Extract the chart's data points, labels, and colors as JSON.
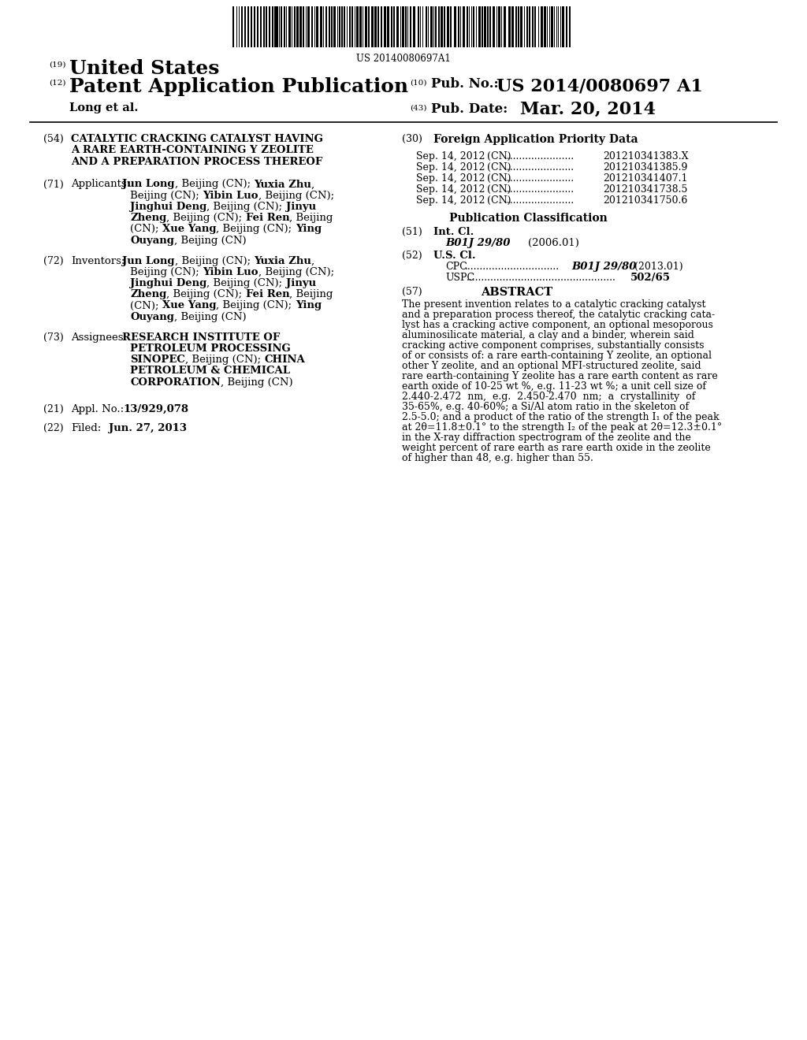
{
  "background_color": "#ffffff",
  "barcode_text": "US 20140080697A1",
  "header_19_text": "United States",
  "header_12_text": "Patent Application Publication",
  "header_long": "Long et al.",
  "header_10_label": "Pub. No.:",
  "header_10_value": "US 2014/0080697 A1",
  "header_43_label": "Pub. Date:",
  "header_43_value": "Mar. 20, 2014",
  "section_54_title_lines": [
    "CATALYTIC CRACKING CATALYST HAVING",
    "A RARE EARTH-CONTAINING Y ZEOLITE",
    "AND A PREPARATION PROCESS THEREOF"
  ],
  "section_71_lines": [
    [
      [
        "Jun Long",
        true
      ],
      [
        ", Beijing (CN); ",
        false
      ],
      [
        "Yuxia Zhu",
        true
      ],
      [
        ",",
        false
      ]
    ],
    [
      [
        "Beijing (CN); ",
        false
      ],
      [
        "Yibin Luo",
        true
      ],
      [
        ", Beijing (CN);",
        false
      ]
    ],
    [
      [
        "Jinghui Deng",
        true
      ],
      [
        ", Beijing (CN); ",
        false
      ],
      [
        "Jinyu",
        true
      ]
    ],
    [
      [
        "Zheng",
        true
      ],
      [
        ", Beijing (CN); ",
        false
      ],
      [
        "Fei Ren",
        true
      ],
      [
        ", Beijing",
        false
      ]
    ],
    [
      [
        "(CN); ",
        false
      ],
      [
        "Xue Yang",
        true
      ],
      [
        ", Beijing (CN); ",
        false
      ],
      [
        "Ying",
        true
      ]
    ],
    [
      [
        "Ouyang",
        true
      ],
      [
        ", Beijing (CN)",
        false
      ]
    ]
  ],
  "section_72_lines": [
    [
      [
        "Jun Long",
        true
      ],
      [
        ", Beijing (CN); ",
        false
      ],
      [
        "Yuxia Zhu",
        true
      ],
      [
        ",",
        false
      ]
    ],
    [
      [
        "Beijing (CN); ",
        false
      ],
      [
        "Yibin Luo",
        true
      ],
      [
        ", Beijing (CN);",
        false
      ]
    ],
    [
      [
        "Jinghui Deng",
        true
      ],
      [
        ", Beijing (CN); ",
        false
      ],
      [
        "Jinyu",
        true
      ]
    ],
    [
      [
        "Zheng",
        true
      ],
      [
        ", Beijing (CN); ",
        false
      ],
      [
        "Fei Ren",
        true
      ],
      [
        ", Beijing",
        false
      ]
    ],
    [
      [
        "(CN); ",
        false
      ],
      [
        "Xue Yang",
        true
      ],
      [
        ", Beijing (CN); ",
        false
      ],
      [
        "Ying",
        true
      ]
    ],
    [
      [
        "Ouyang",
        true
      ],
      [
        ", Beijing (CN)",
        false
      ]
    ]
  ],
  "section_73_lines": [
    [
      [
        "RESEARCH INSTITUTE OF",
        true
      ]
    ],
    [
      [
        "PETROLEUM PROCESSING",
        true
      ]
    ],
    [
      [
        "SINOPEC",
        true
      ],
      [
        ", Beijing (CN); ",
        false
      ],
      [
        "CHINA",
        true
      ]
    ],
    [
      [
        "PETROLEUM & CHEMICAL",
        true
      ]
    ],
    [
      [
        "CORPORATION",
        true
      ],
      [
        ", Beijing (CN)",
        false
      ]
    ]
  ],
  "section_21_value": "13/929,078",
  "section_22_value": "Jun. 27, 2013",
  "priority_data": [
    [
      "Sep. 14, 2012",
      "(CN)",
      "201210341383.X"
    ],
    [
      "Sep. 14, 2012",
      "(CN)",
      "201210341385.9"
    ],
    [
      "Sep. 14, 2012",
      "(CN)",
      "201210341407.1"
    ],
    [
      "Sep. 14, 2012",
      "(CN)",
      "201210341738.5"
    ],
    [
      "Sep. 14, 2012",
      "(CN)",
      "201210341750.6"
    ]
  ],
  "section_51_class": "B01J 29/80",
  "section_51_year": "(2006.01)",
  "section_52_cpc_value": "B01J 29/80",
  "section_52_cpc_year": "(2013.01)",
  "section_52_uspc_value": "502/65",
  "abstract_lines": [
    "The present invention relates to a catalytic cracking catalyst",
    "and a preparation process thereof, the catalytic cracking cata-",
    "lyst has a cracking active component, an optional mesoporous",
    "aluminosilicate material, a clay and a binder, wherein said",
    "cracking active component comprises, substantially consists",
    "of or consists of: a rare earth-containing Y zeolite, an optional",
    "other Y zeolite, and an optional MFI-structured zeolite, said",
    "rare earth-containing Y zeolite has a rare earth content as rare",
    "earth oxide of 10-25 wt %, e.g. 11-23 wt %; a unit cell size of",
    "2.440-2.472  nm,  e.g.  2.450-2.470  nm;  a  crystallinity  of",
    "35-65%, e.g. 40-60%; a Si/Al atom ratio in the skeleton of",
    "2.5-5.0; and a product of the ratio of the strength I₁ of the peak",
    "at 2θ=11.8±0.1° to the strength I₂ of the peak at 2θ=12.3±0.1°",
    "in the X-ray diffraction spectrogram of the zeolite and the",
    "weight percent of rare earth as rare earth oxide in the zeolite",
    "of higher than 48, e.g. higher than 55."
  ]
}
